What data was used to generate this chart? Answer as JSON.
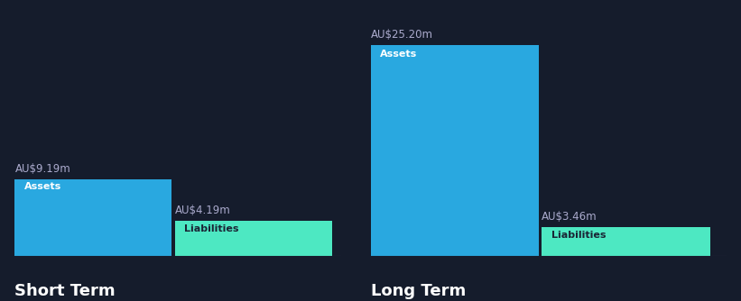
{
  "background_color": "#151c2c",
  "bar_color_assets": "#29a8e0",
  "bar_color_liabilities": "#4de8c2",
  "text_color_white": "#ffffff",
  "text_color_dark": "#1a2535",
  "text_color_label": "#aaaacc",
  "short_term": {
    "assets_value": 9.19,
    "liabilities_value": 4.19,
    "assets_label": "AU$9.19m",
    "liabilities_label": "AU$4.19m",
    "title": "Short Term"
  },
  "long_term": {
    "assets_value": 25.2,
    "liabilities_value": 3.46,
    "assets_label": "AU$25.20m",
    "liabilities_label": "AU$3.46m",
    "title": "Long Term"
  },
  "y_max": 27.0,
  "assets_inner_label": "Assets",
  "liabilities_inner_label": "Liabilities",
  "label_fontsize": 8.5,
  "inner_label_fontsize": 8,
  "title_fontsize": 13
}
